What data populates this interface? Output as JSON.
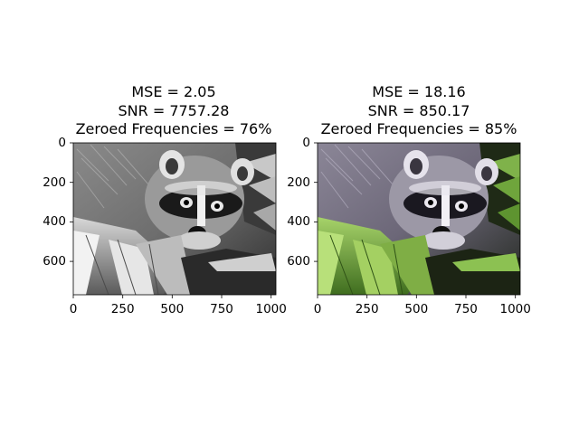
{
  "panels": [
    {
      "id": "grayscale",
      "title_lines": [
        "MSE = 2.05",
        "SNR = 7757.28",
        "Zeroed Frequencies = 76%"
      ],
      "x_ticks": [
        "0",
        "250",
        "500",
        "750",
        "1000"
      ],
      "y_ticks": [
        "0",
        "200",
        "400",
        "600"
      ],
      "image": "raccoon-grayscale"
    },
    {
      "id": "color",
      "title_lines": [
        "MSE = 18.16",
        "SNR = 850.17",
        "Zeroed Frequencies = 85%"
      ],
      "x_ticks": [
        "0",
        "250",
        "500",
        "750",
        "1000"
      ],
      "y_ticks": [
        "0",
        "200",
        "400",
        "600"
      ],
      "image": "raccoon-color"
    }
  ]
}
